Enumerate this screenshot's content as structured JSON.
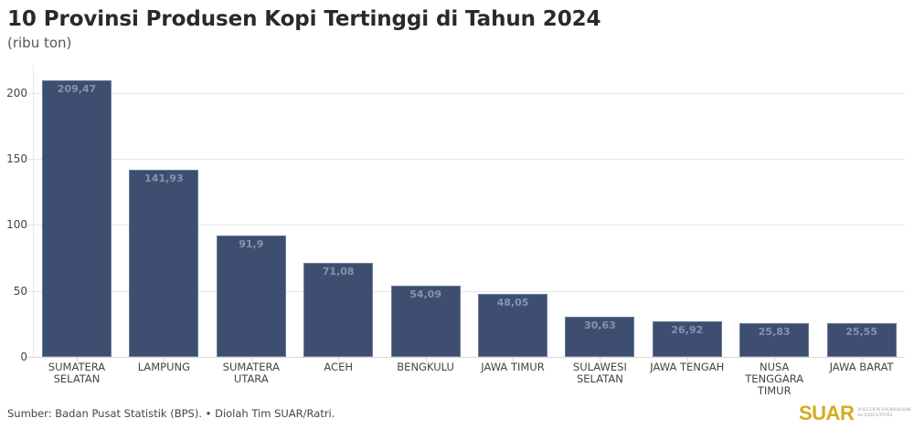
{
  "header": {
    "title": "10 Provinsi Produsen Kopi Tertinggi di Tahun 2024",
    "subtitle": "(ribu ton)"
  },
  "footer": {
    "source": "Sumber: Badan Pusat Statistik (BPS). • Diolah Tim SUAR/Ratri.",
    "logo_text": "SUAR",
    "logo_tagline": "SOLUTION JOURNALISM for EXECUTIVES"
  },
  "colors": {
    "bar": "#3d4e71",
    "bar_label": "#8693ad",
    "logo": "#d6ab21"
  },
  "chart_data": {
    "type": "bar",
    "title": "10 Provinsi Produsen Kopi Tertinggi di Tahun 2024",
    "subtitle": "(ribu ton)",
    "xlabel": "",
    "ylabel": "ribu ton",
    "ylim": [
      0,
      220
    ],
    "yticks": [
      0,
      50,
      100,
      150,
      200
    ],
    "grid": true,
    "legend": null,
    "categories": [
      "SUMATERA SELATAN",
      "LAMPUNG",
      "SUMATERA UTARA",
      "ACEH",
      "BENGKULU",
      "JAWA TIMUR",
      "SULAWESI SELATAN",
      "JAWA TENGAH",
      "NUSA TENGGARA TIMUR",
      "JAWA BARAT"
    ],
    "category_labels": [
      "SUMATERA\nSELATAN",
      "LAMPUNG",
      "SUMATERA\nUTARA",
      "ACEH",
      "BENGKULU",
      "JAWA TIMUR",
      "SULAWESI\nSELATAN",
      "JAWA TENGAH",
      "NUSA\nTENGGARA\nTIMUR",
      "JAWA BARAT"
    ],
    "values": [
      209.47,
      141.93,
      91.9,
      71.08,
      54.09,
      48.05,
      30.63,
      26.92,
      25.83,
      25.55
    ],
    "value_labels": [
      "209,47",
      "141,93",
      "91,9",
      "71,08",
      "54,09",
      "48,05",
      "30,63",
      "26,92",
      "25,83",
      "25,55"
    ]
  }
}
